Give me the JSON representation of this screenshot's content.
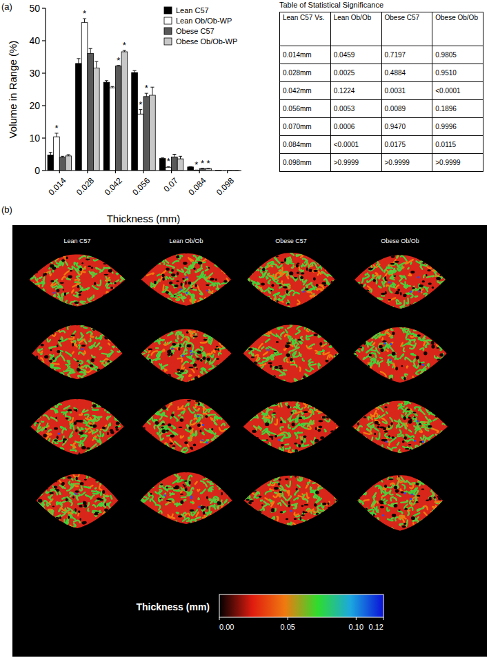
{
  "panel_labels": [
    "(a)",
    "(b)"
  ],
  "chart_data": {
    "type": "bar",
    "xlabel": "Thickness (mm)",
    "ylabel": "Volume in Range (%)",
    "categories": [
      "0.014",
      "0.028",
      "0.042",
      "0.056",
      "0.07",
      "0.084",
      "0.098"
    ],
    "series": [
      {
        "name": "Lean C57",
        "color": "#000000",
        "values": [
          4.8,
          33,
          27.2,
          30.2,
          3.7,
          1.1,
          0.1
        ],
        "errors": [
          0.8,
          1.5,
          0.5,
          0.6,
          0.2,
          0.1,
          0
        ]
      },
      {
        "name": "Lean Ob/Ob-WP",
        "color": "#ffffff",
        "values": [
          10.4,
          45.6,
          25.5,
          17.4,
          1.0,
          0.1,
          0
        ],
        "errors": [
          1.1,
          1.2,
          0.4,
          1.4,
          0.2,
          0.05,
          0
        ]
      },
      {
        "name": "Obese C57",
        "color": "#595959",
        "values": [
          4.1,
          36.1,
          32.2,
          22.8,
          4.2,
          0.6,
          0.05
        ],
        "errors": [
          0.3,
          1.5,
          0.2,
          1.0,
          0.8,
          0.1,
          0
        ]
      },
      {
        "name": "Obese Ob/Ob-WP",
        "color": "#c8c8c8",
        "values": [
          4.5,
          31.6,
          36.6,
          23.2,
          3.6,
          0.6,
          0.05
        ],
        "errors": [
          0.4,
          2.0,
          0.4,
          2.5,
          0.8,
          0.1,
          0
        ]
      }
    ],
    "ylim": [
      0,
      50
    ],
    "yticks": [
      0,
      10,
      20,
      30,
      40,
      50
    ],
    "grid": false,
    "legend": "top-right",
    "annotations": [
      {
        "text": "*",
        "series": 1,
        "category": 0
      },
      {
        "text": "*",
        "series": 1,
        "category": 1
      },
      {
        "text": "*",
        "series": 2,
        "category": 2
      },
      {
        "text": "*",
        "series": 3,
        "category": 2
      },
      {
        "text": "*",
        "series": 1,
        "category": 3
      },
      {
        "text": "*",
        "series": 2,
        "category": 3
      },
      {
        "text": "*",
        "series": 1,
        "category": 4
      },
      {
        "text": "*",
        "series": 1,
        "category": 5
      },
      {
        "text": "*",
        "series": 2,
        "category": 5
      },
      {
        "text": "*",
        "series": 3,
        "category": 5
      }
    ]
  },
  "table": {
    "title": "Table of Statistical Significance",
    "header": [
      "Lean C57 Vs.",
      "Lean Ob/Ob",
      "Obese C57",
      "Obese Ob/Ob"
    ],
    "rows": [
      [
        "0.014mm",
        "0.0459",
        "0.7197",
        "0.9805"
      ],
      [
        "0.028mm",
        "0.0025",
        "0.4884",
        "0.9510"
      ],
      [
        "0.042mm",
        "0.1224",
        "0.0031",
        "<0.0001"
      ],
      [
        "0.056mm",
        "0.0053",
        "0.0089",
        "0.1896"
      ],
      [
        "0.070mm",
        "0.0006",
        "0.9470",
        "0.9996"
      ],
      [
        "0.084mm",
        "<0.0001",
        "0.0175",
        "0.0115"
      ],
      [
        "0.098mm",
        ">0.9999",
        ">0.9999",
        ">0.9999"
      ]
    ]
  },
  "panel_b": {
    "columns": [
      "Lean C57",
      "Lean Ob/Ob",
      "Obese C57",
      "Obese Ob/Ob"
    ],
    "colorbar": {
      "label": "Thickness (mm)",
      "range": [
        0,
        0.12
      ],
      "ticks": [
        {
          "value": 0,
          "label": "0.00"
        },
        0.05,
        {
          "value": 0.1,
          "label": "0.10"
        },
        0.12
      ],
      "colors": [
        "#000000",
        "#e01b0f",
        "#f07a10",
        "#2edc2e",
        "#1ca7e0",
        "#0a10d8"
      ]
    }
  }
}
